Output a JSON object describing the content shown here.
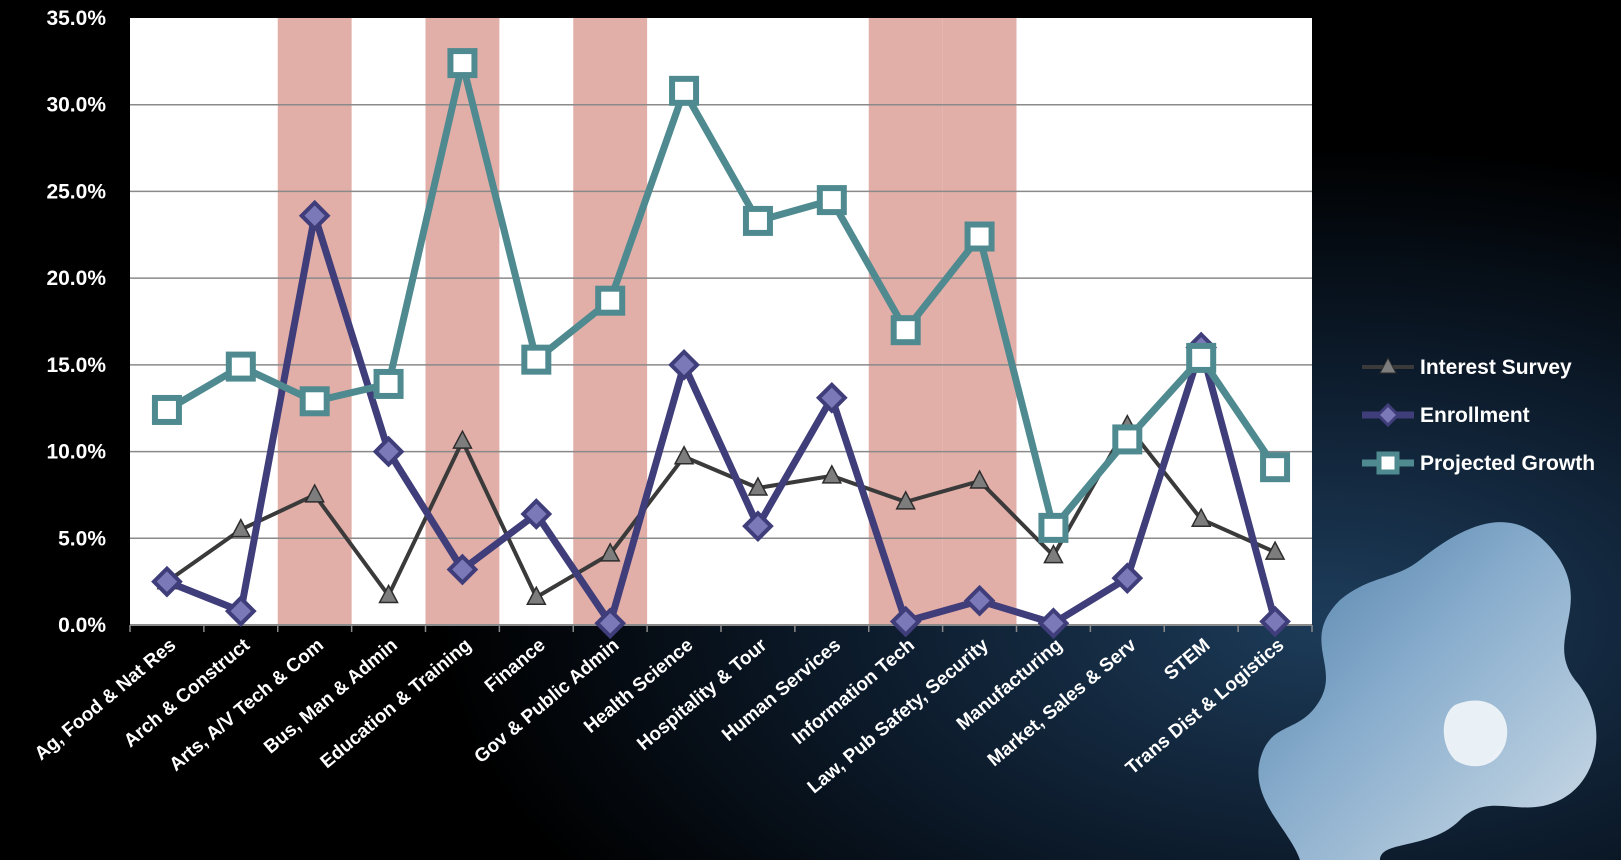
{
  "chart_data": {
    "type": "line",
    "categories": [
      "Ag, Food & Nat Res",
      "Arch & Construct",
      "Arts, A/V Tech & Com",
      "Bus, Man & Admin",
      "Education & Training",
      "Finance",
      "Gov & Public Admin",
      "Health Science",
      "Hospitality & Tour",
      "Human Services",
      "Information Tech",
      "Law, Pub Safety, Security",
      "Manufacturing",
      "Market, Sales & Serv",
      "STEM",
      "Trans Dist & Logistics"
    ],
    "series": [
      {
        "name": "Interest Survey",
        "color": "#3a3a3a",
        "marker": "triangle",
        "values": [
          2.5,
          5.5,
          7.5,
          1.7,
          10.6,
          1.6,
          4.1,
          9.7,
          7.9,
          8.6,
          7.1,
          8.3,
          4.0,
          11.5,
          6.1,
          4.2
        ]
      },
      {
        "name": "Enrollment",
        "color": "#3f3d7a",
        "marker": "diamond",
        "values": [
          2.5,
          0.8,
          23.6,
          10.0,
          3.2,
          6.4,
          0.1,
          15.0,
          5.7,
          13.1,
          0.2,
          1.4,
          0.1,
          2.7,
          16.0,
          0.2
        ]
      },
      {
        "name": "Projected Growth",
        "color": "#4e8a8f",
        "marker": "square",
        "values": [
          12.4,
          14.9,
          12.9,
          13.9,
          32.4,
          15.3,
          18.7,
          30.8,
          23.3,
          24.5,
          17.0,
          22.4,
          5.6,
          10.7,
          15.4,
          9.1
        ]
      }
    ],
    "highlighted_categories": [
      "Arts, A/V Tech & Com",
      "Education & Training",
      "Gov & Public Admin",
      "Information Tech",
      "Law, Pub Safety, Security"
    ],
    "highlight_color": "#e2aea8",
    "ylim": [
      0,
      35
    ],
    "yticks": [
      "0.0%",
      "5.0%",
      "10.0%",
      "15.0%",
      "20.0%",
      "25.0%",
      "30.0%",
      "35.0%"
    ],
    "ytick_step": 5,
    "grid": true,
    "legend_position": "right",
    "title": "",
    "xlabel": "",
    "ylabel": ""
  }
}
